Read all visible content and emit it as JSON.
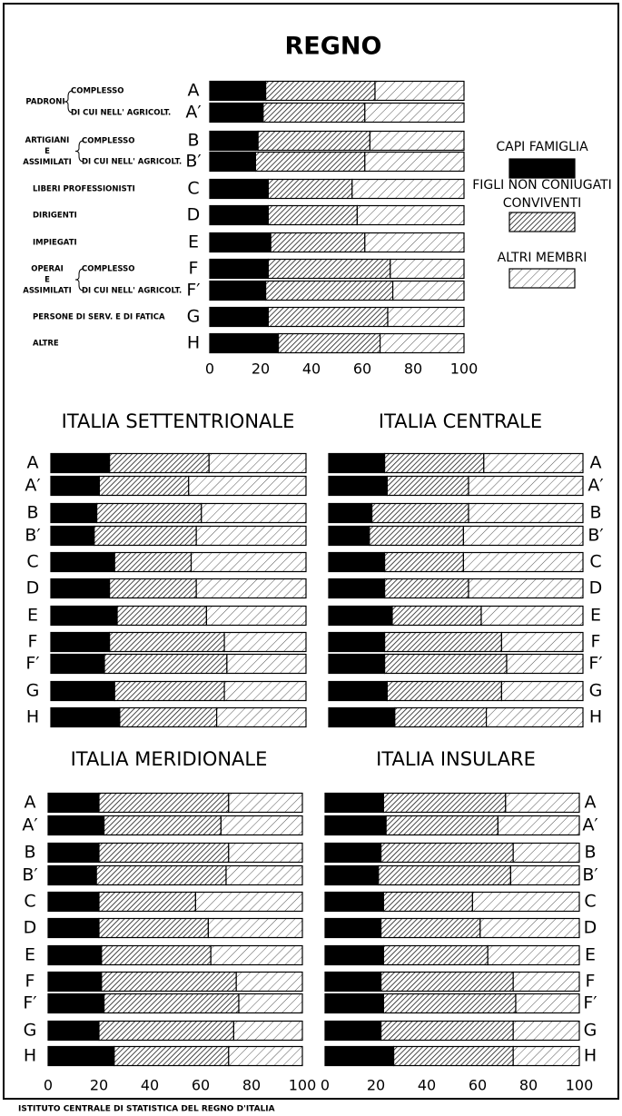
{
  "chart_data": [
    {
      "type": "bar",
      "title": "REGNO",
      "categories": [
        "A",
        "A′",
        "B",
        "B′",
        "C",
        "D",
        "E",
        "F",
        "F′",
        "G",
        "H"
      ],
      "series": [
        {
          "name": "CAPI FAMIGLIA",
          "color": "#000000",
          "values": [
            22,
            21,
            19,
            18,
            23,
            23,
            24,
            23,
            22,
            23,
            27
          ]
        },
        {
          "name": "FIGLI NON CONIUGATI CONVIVENTI",
          "color": "#1a1a1a",
          "values": [
            43,
            40,
            44,
            43,
            33,
            35,
            37,
            48,
            50,
            47,
            40
          ]
        },
        {
          "name": "ALTRI MEMBRI",
          "color": "#555555",
          "values": [
            35,
            39,
            37,
            39,
            44,
            42,
            39,
            29,
            28,
            30,
            33
          ]
        }
      ],
      "xlim": [
        0,
        100
      ],
      "xticks": [
        0,
        20,
        40,
        60,
        80,
        100
      ],
      "legend": true
    },
    {
      "type": "bar",
      "title": "ITALIA SETTENTRIONALE",
      "categories": [
        "A",
        "A′",
        "B",
        "B′",
        "C",
        "D",
        "E",
        "F",
        "F′",
        "G",
        "H"
      ],
      "series": [
        {
          "name": "CAPI FAMIGLIA",
          "color": "#000000",
          "values": [
            23,
            19,
            18,
            17,
            25,
            23,
            26,
            23,
            21,
            25,
            27
          ]
        },
        {
          "name": "FIGLI NON CONIUGATI CONVIVENTI",
          "color": "#1a1a1a",
          "values": [
            39,
            35,
            41,
            40,
            30,
            34,
            35,
            45,
            48,
            43,
            38
          ]
        },
        {
          "name": "ALTRI MEMBRI",
          "color": "#555555",
          "values": [
            38,
            46,
            41,
            43,
            45,
            43,
            39,
            32,
            31,
            32,
            35
          ]
        }
      ],
      "xlim": [
        0,
        100
      ]
    },
    {
      "type": "bar",
      "title": "ITALIA CENTRALE",
      "categories": [
        "A",
        "A′",
        "B",
        "B′",
        "C",
        "D",
        "E",
        "F",
        "F′",
        "G",
        "H"
      ],
      "series": [
        {
          "name": "CAPI FAMIGLIA",
          "color": "#000000",
          "values": [
            22,
            23,
            17,
            16,
            22,
            22,
            25,
            22,
            22,
            23,
            26
          ]
        },
        {
          "name": "FIGLI NON CONIUGATI CONVIVENTI",
          "color": "#1a1a1a",
          "values": [
            39,
            32,
            38,
            37,
            31,
            33,
            35,
            46,
            48,
            45,
            36
          ]
        },
        {
          "name": "ALTRI MEMBRI",
          "color": "#555555",
          "values": [
            39,
            45,
            45,
            47,
            47,
            45,
            40,
            32,
            30,
            32,
            38
          ]
        }
      ],
      "xlim": [
        0,
        100
      ]
    },
    {
      "type": "bar",
      "title": "ITALIA MERIDIONALE",
      "categories": [
        "A",
        "A′",
        "B",
        "B′",
        "C",
        "D",
        "E",
        "F",
        "F′",
        "G",
        "H"
      ],
      "series": [
        {
          "name": "CAPI FAMIGLIA",
          "color": "#000000",
          "values": [
            20,
            22,
            20,
            19,
            20,
            20,
            21,
            21,
            22,
            20,
            26
          ]
        },
        {
          "name": "FIGLI NON CONIUGATI CONVIVENTI",
          "color": "#1a1a1a",
          "values": [
            51,
            46,
            51,
            51,
            38,
            43,
            43,
            53,
            53,
            53,
            45
          ]
        },
        {
          "name": "ALTRI MEMBRI",
          "color": "#555555",
          "values": [
            29,
            32,
            29,
            30,
            42,
            37,
            36,
            26,
            25,
            27,
            29
          ]
        }
      ],
      "xlim": [
        0,
        100
      ],
      "xticks": [
        0,
        20,
        40,
        60,
        80,
        100
      ]
    },
    {
      "type": "bar",
      "title": "ITALIA INSULARE",
      "categories": [
        "A",
        "A′",
        "B",
        "B′",
        "C",
        "D",
        "E",
        "F",
        "F′",
        "G",
        "H"
      ],
      "series": [
        {
          "name": "CAPI FAMIGLIA",
          "color": "#000000",
          "values": [
            23,
            24,
            22,
            21,
            23,
            22,
            23,
            22,
            23,
            22,
            27
          ]
        },
        {
          "name": "FIGLI NON CONIUGATI CONVIVENTI",
          "color": "#1a1a1a",
          "values": [
            48,
            44,
            52,
            52,
            35,
            39,
            41,
            52,
            52,
            52,
            47
          ]
        },
        {
          "name": "ALTRI MEMBRI",
          "color": "#555555",
          "values": [
            29,
            32,
            26,
            27,
            42,
            39,
            36,
            26,
            25,
            26,
            26
          ]
        }
      ],
      "xlim": [
        0,
        100
      ],
      "xticks": [
        0,
        20,
        40,
        60,
        80,
        100
      ]
    }
  ],
  "row_labels": [
    {
      "name": [
        "PADRONI"
      ],
      "parts": [
        "COMPLESSO",
        "DI CUI NELL' AGRICOLT."
      ]
    },
    {
      "name": [
        "ARTIGIANI",
        "E",
        "ASSIMILATI"
      ],
      "parts": [
        "COMPLESSO",
        "DI CUI NELL' AGRICOLT."
      ]
    },
    {
      "name": [
        "LIBERI PROFESSIONISTI"
      ]
    },
    {
      "name": [
        "DIRIGENTI"
      ]
    },
    {
      "name": [
        "IMPIEGATI"
      ]
    },
    {
      "name": [
        "OPERAI",
        "E",
        "ASSIMILATI"
      ],
      "parts": [
        "COMPLESSO",
        "DI CUI NELL' AGRICOLT."
      ]
    },
    {
      "name": [
        "PERSONE DI SERV. E DI FATICA"
      ]
    },
    {
      "name": [
        "ALTRE"
      ]
    }
  ],
  "footer": "ISTITUTO CENTRALE DI STATISTICA DEL REGNO D'ITALIA"
}
